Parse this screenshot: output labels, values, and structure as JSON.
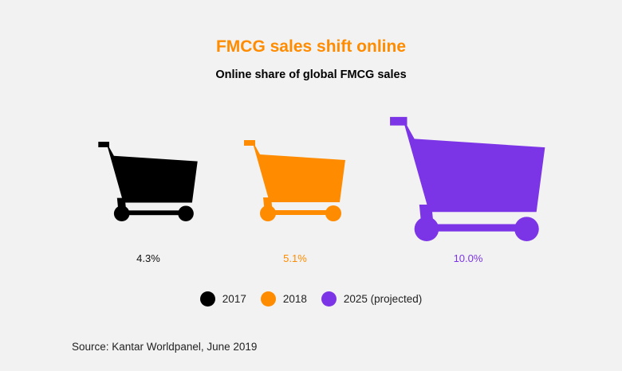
{
  "chart_data": {
    "type": "pictogram",
    "title": "FMCG sales shift online",
    "subtitle": "Online share of global FMCG sales",
    "unit": "%",
    "categories": [
      "2017",
      "2018",
      "2025 (projected)"
    ],
    "values": [
      4.3,
      5.1,
      10.0
    ],
    "value_labels": [
      "4.3%",
      "5.1%",
      "10.0%"
    ],
    "colors": [
      "#000000",
      "#ff8c00",
      "#7c35e6"
    ],
    "icon": "shopping-cart-icon",
    "legend": {
      "placement": "bottom",
      "entries": [
        "2017",
        "2018",
        "2025 (projected)"
      ]
    },
    "grid": false
  },
  "source": "Source: Kantar Worldpanel, June 2019"
}
